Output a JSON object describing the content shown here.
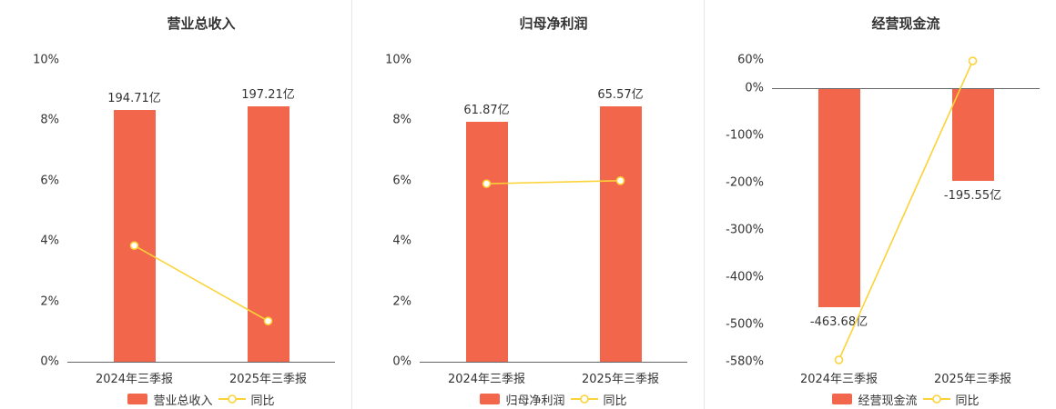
{
  "colors": {
    "bar": "#f2664b",
    "line": "#fbd338",
    "axis_line": "#666666",
    "text": "#333333",
    "divider": "#e7e7e7",
    "background": "#ffffff"
  },
  "chart_data": [
    {
      "type": "bar",
      "title": "营业总收入",
      "categories": [
        "2024年三季报",
        "2025年三季报"
      ],
      "bars": {
        "name": "营业总收入",
        "values_yi": [
          194.71,
          197.21
        ],
        "labels": [
          "194.71亿",
          "197.21亿"
        ],
        "axis_values": [
          8.35,
          8.45
        ]
      },
      "line": {
        "name": "同比",
        "values": [
          3.85,
          1.35
        ]
      },
      "y_axis": {
        "ticks": [
          "10%",
          "8%",
          "6%",
          "4%",
          "2%",
          "0%"
        ],
        "max": 10,
        "min": 0
      },
      "legend_position": "bottom",
      "grid": false
    },
    {
      "type": "bar",
      "title": "归母净利润",
      "categories": [
        "2024年三季报",
        "2025年三季报"
      ],
      "bars": {
        "name": "归母净利润",
        "values_yi": [
          61.87,
          65.57
        ],
        "labels": [
          "61.87亿",
          "65.57亿"
        ],
        "axis_values": [
          7.95,
          8.45
        ]
      },
      "line": {
        "name": "同比",
        "values": [
          5.9,
          6.0
        ]
      },
      "y_axis": {
        "ticks": [
          "10%",
          "8%",
          "6%",
          "4%",
          "2%",
          "0%"
        ],
        "max": 10,
        "min": 0
      },
      "legend_position": "bottom",
      "grid": false
    },
    {
      "type": "bar",
      "title": "经营现金流",
      "categories": [
        "2024年三季报",
        "2025年三季报"
      ],
      "bars": {
        "name": "经营现金流",
        "values_yi": [
          -463.68,
          -195.55
        ],
        "labels": [
          "-463.68亿",
          "-195.55亿"
        ],
        "axis_values": [
          -463.68,
          -195.55
        ]
      },
      "line": {
        "name": "同比",
        "values": [
          -576,
          58
        ]
      },
      "y_axis": {
        "ticks": [
          "60%",
          "0%",
          "-100%",
          "-200%",
          "-300%",
          "-400%",
          "-500%",
          "-580%"
        ],
        "max": 60,
        "min": -580
      },
      "legend_position": "bottom",
      "grid": false
    }
  ]
}
